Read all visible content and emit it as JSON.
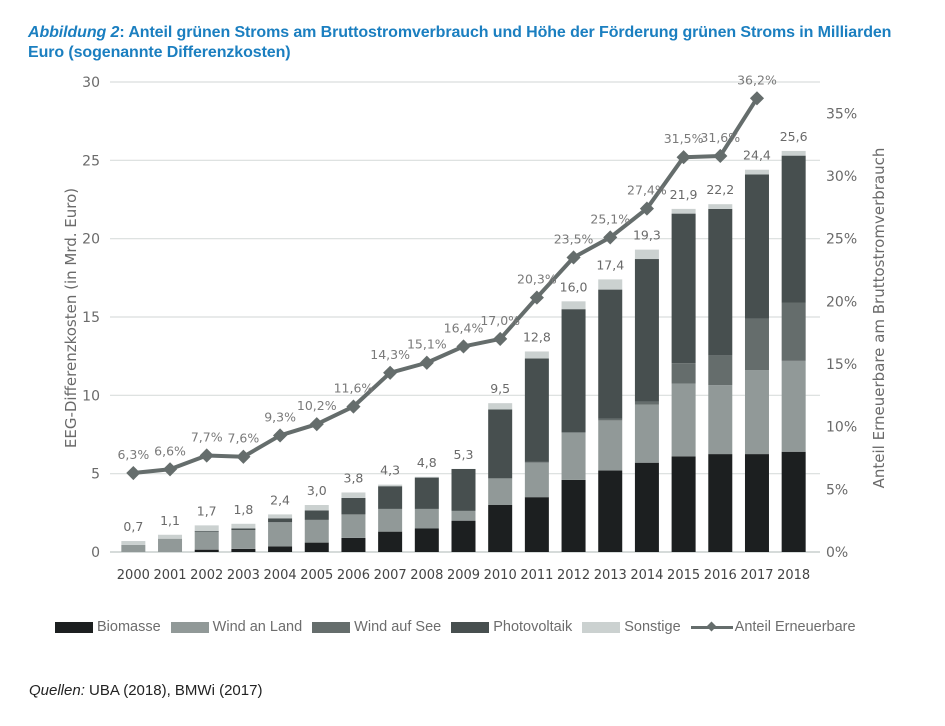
{
  "title": {
    "prefix": "Abbildung 2",
    "text": ": Anteil grünen Stroms am Bruttostromverbrauch und Höhe der Förderung grünen Stroms in Milliarden Euro (sogenannte Differenzkosten)"
  },
  "source": {
    "label": "Quellen:",
    "text": " UBA (2018), BMWi (2017)"
  },
  "chart_data": {
    "type": "bar",
    "stacked": true,
    "title": "Anteil grünen Stroms am Bruttostromverbrauch und Höhe der Förderung grünen Stroms in Milliarden Euro (sogenannte Differenzkosten)",
    "xlabel": "",
    "ylabel": "EEG-Differenzkosten (in Mrd. Euro)",
    "y2label": "Anteil Erneuerbare am Bruttostromverbrauch",
    "ylim": [
      0,
      30
    ],
    "y2lim": [
      0,
      0.375
    ],
    "yticks": [
      "0",
      "5",
      "10",
      "15",
      "20",
      "25",
      "30"
    ],
    "y2ticks": [
      "0%",
      "5%",
      "10%",
      "15%",
      "20%",
      "25%",
      "30%",
      "35%"
    ],
    "grid": true,
    "legend_position": "bottom",
    "categories": [
      "2000",
      "2001",
      "2002",
      "2003",
      "2004",
      "2005",
      "2006",
      "2007",
      "2008",
      "2009",
      "2010",
      "2011",
      "2012",
      "2013",
      "2014",
      "2015",
      "2016",
      "2017",
      "2018"
    ],
    "series": [
      {
        "name": "Biomasse",
        "color": "#1c1f20",
        "values": [
          0.0,
          0.0,
          0.15,
          0.2,
          0.35,
          0.6,
          0.9,
          1.3,
          1.5,
          2.0,
          3.0,
          3.5,
          4.6,
          5.2,
          5.7,
          6.1,
          6.25,
          6.25,
          6.4
        ]
      },
      {
        "name": "Wind an Land",
        "color": "#919998",
        "values": [
          0.45,
          0.85,
          1.15,
          1.2,
          1.55,
          1.45,
          1.5,
          1.45,
          1.25,
          0.6,
          1.7,
          2.2,
          3.0,
          3.2,
          3.7,
          4.65,
          4.4,
          5.35,
          5.8
        ]
      },
      {
        "name": "Wind auf See",
        "color": "#656d6c",
        "values": [
          0,
          0,
          0,
          0,
          0,
          0,
          0,
          0,
          0,
          0.05,
          0,
          0.05,
          0.05,
          0.1,
          0.2,
          1.3,
          1.9,
          3.3,
          3.7
        ]
      },
      {
        "name": "Photovoltaik",
        "color": "#474f4f",
        "values": [
          0.0,
          0.0,
          0.05,
          0.1,
          0.25,
          0.6,
          1.05,
          1.45,
          2.0,
          2.65,
          4.4,
          6.6,
          7.85,
          8.25,
          9.1,
          9.55,
          9.35,
          9.2,
          9.4
        ]
      },
      {
        "name": "Sonstige",
        "color": "#cbd1d0",
        "values": [
          0.25,
          0.25,
          0.35,
          0.3,
          0.25,
          0.35,
          0.35,
          0.1,
          0.05,
          0.0,
          0.4,
          0.45,
          0.5,
          0.65,
          0.6,
          0.3,
          0.3,
          0.3,
          0.3
        ]
      }
    ],
    "totals": [
      0.7,
      1.1,
      1.7,
      1.8,
      2.4,
      3.0,
      3.8,
      4.3,
      4.8,
      5.3,
      9.5,
      12.8,
      16.0,
      17.4,
      19.3,
      21.9,
      22.2,
      24.4,
      25.6
    ],
    "total_labels": [
      "0,7",
      "1,1",
      "1,7",
      "1,8",
      "2,4",
      "3,0",
      "3,8",
      "4,3",
      "4,8",
      "5,3",
      "9,5",
      "12,8",
      "16,0",
      "17,4",
      "19,3",
      "21,9",
      "22,2",
      "24,4",
      "25,6"
    ],
    "line_series": {
      "name": "Anteil Erneuerbare",
      "color": "#656d6c",
      "axis": "right",
      "values": [
        0.063,
        0.066,
        0.077,
        0.076,
        0.093,
        0.102,
        0.116,
        0.143,
        0.151,
        0.164,
        0.17,
        0.203,
        0.235,
        0.251,
        0.274,
        0.315,
        0.316,
        0.362,
        null
      ],
      "labels": [
        "6,3%",
        "6,6%",
        "7,7%",
        "7,6%",
        "9,3%",
        "10,2%",
        "11,6%",
        "14,3%",
        "15,1%",
        "16,4%",
        "17,0%",
        "20,3%",
        "23,5%",
        "25,1%",
        "27,4%",
        "31,5%",
        "31,6%",
        "36,2%",
        ""
      ]
    }
  }
}
